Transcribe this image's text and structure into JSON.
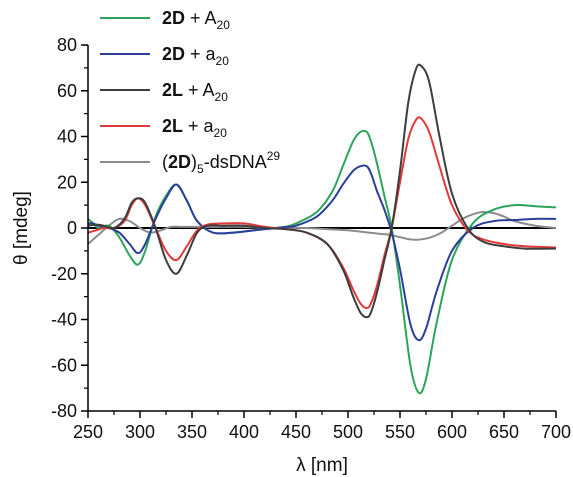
{
  "chart_data": {
    "type": "line",
    "xlabel": "λ [nm]",
    "ylabel": "θ [mdeg]",
    "xlim": [
      250,
      700
    ],
    "ylim": [
      -80,
      80
    ],
    "xticks": [
      250,
      300,
      350,
      400,
      450,
      500,
      550,
      600,
      650,
      700
    ],
    "yticks": [
      -80,
      -60,
      -40,
      -20,
      0,
      20,
      40,
      60,
      80
    ],
    "grid": false,
    "legend_position": "top-left",
    "series": [
      {
        "name": "2D + A20",
        "legend": {
          "bold": "2D",
          "text": " + A",
          "sub": "20",
          "sup": ""
        },
        "color": "#2ca55a",
        "x": [
          250,
          255,
          260,
          270,
          280,
          290,
          298,
          305,
          315,
          325,
          335,
          345,
          355,
          370,
          390,
          410,
          430,
          440,
          450,
          470,
          485,
          495,
          505,
          512,
          518,
          522,
          528,
          535,
          542,
          550,
          560,
          568,
          575,
          585,
          600,
          620,
          640,
          660,
          680,
          700
        ],
        "y": [
          4,
          2,
          0,
          1,
          -4,
          -12,
          -16,
          -10,
          5,
          14,
          19,
          12,
          3,
          -2,
          -2,
          -1,
          0,
          0.5,
          2,
          7,
          16,
          27,
          38,
          42,
          42,
          38,
          28,
          14,
          0,
          -25,
          -60,
          -72,
          -66,
          -42,
          -14,
          2,
          8,
          10,
          9.5,
          9
        ]
      },
      {
        "name": "2D + a20",
        "legend": {
          "bold": "2D",
          "text": " + a",
          "sub": "20",
          "sup": ""
        },
        "color": "#2b3f9a",
        "x": [
          250,
          255,
          260,
          270,
          280,
          290,
          298,
          305,
          315,
          325,
          335,
          345,
          355,
          370,
          390,
          410,
          430,
          440,
          450,
          470,
          485,
          495,
          505,
          512,
          518,
          522,
          528,
          535,
          542,
          550,
          560,
          568,
          575,
          585,
          600,
          620,
          640,
          660,
          680,
          700
        ],
        "y": [
          2,
          2,
          1,
          0,
          -2,
          -7,
          -11,
          -7,
          4,
          13,
          19,
          12,
          3,
          -2,
          -2,
          -1,
          0,
          0.5,
          1,
          5,
          12,
          19,
          25,
          27,
          27,
          24,
          16,
          8,
          -2,
          -18,
          -42,
          -49,
          -44,
          -28,
          -10,
          0,
          3,
          3.5,
          4,
          4
        ]
      },
      {
        "name": "2L + A20",
        "legend": {
          "bold": "2L",
          "text": " + A",
          "sub": "20",
          "sup": ""
        },
        "color": "#3d3d3d",
        "x": [
          250,
          258,
          265,
          275,
          285,
          292,
          298,
          305,
          315,
          325,
          335,
          345,
          355,
          365,
          380,
          400,
          420,
          440,
          460,
          480,
          495,
          505,
          512,
          518,
          522,
          528,
          535,
          542,
          550,
          558,
          565,
          570,
          578,
          588,
          600,
          615,
          630,
          650,
          670,
          700
        ],
        "y": [
          1,
          1.5,
          1,
          0,
          4,
          11,
          13,
          11,
          0,
          -14,
          -20,
          -12,
          -2,
          1,
          1,
          1,
          0,
          -0.5,
          -2,
          -7,
          -18,
          -30,
          -37,
          -39,
          -37,
          -28,
          -14,
          0,
          25,
          55,
          69,
          71,
          64,
          40,
          15,
          0,
          -6,
          -8,
          -9,
          -9
        ]
      },
      {
        "name": "2L + a20",
        "legend": {
          "bold": "2L",
          "text": " + a",
          "sub": "20",
          "sup": ""
        },
        "color": "#e23a3a",
        "x": [
          250,
          258,
          265,
          275,
          285,
          292,
          298,
          305,
          315,
          325,
          335,
          345,
          355,
          365,
          380,
          400,
          420,
          440,
          460,
          480,
          495,
          505,
          512,
          518,
          522,
          528,
          535,
          542,
          550,
          558,
          565,
          570,
          578,
          588,
          600,
          615,
          630,
          650,
          670,
          700
        ],
        "y": [
          -2,
          -1,
          0,
          0,
          3,
          10,
          13,
          10,
          0,
          -10,
          -14,
          -8,
          -1,
          1.5,
          2,
          2,
          0.5,
          -0.5,
          -2,
          -7,
          -17,
          -27,
          -33,
          -35,
          -33,
          -25,
          -12,
          0,
          20,
          39,
          47,
          48,
          42,
          27,
          10,
          -1,
          -5,
          -7,
          -8,
          -8.5
        ]
      },
      {
        "name": "(2D)5-dsDNA29",
        "legend": {
          "bold": "2D",
          "text": "",
          "sub": "5",
          "sup": "29",
          "prefix": "(",
          "suffix_before_sub": ")",
          "tail": "-dsDNA"
        },
        "color": "#8c8c8c",
        "x": [
          250,
          260,
          270,
          280,
          290,
          300,
          310,
          320,
          330,
          340,
          350,
          360,
          380,
          400,
          420,
          440,
          460,
          480,
          500,
          510,
          520,
          530,
          540,
          550,
          560,
          570,
          580,
          590,
          600,
          610,
          620,
          630,
          640,
          650,
          660,
          680,
          700
        ],
        "y": [
          -7,
          -3,
          1,
          4,
          3,
          0,
          -2,
          -1,
          0.5,
          0.5,
          0.5,
          0.5,
          0.5,
          0.5,
          0,
          0,
          0,
          -0.5,
          -1,
          -1.5,
          -2,
          -2.5,
          -3,
          -4,
          -5,
          -5,
          -4,
          -2,
          1,
          4,
          6,
          7,
          6.5,
          5,
          3,
          1,
          0
        ]
      }
    ]
  }
}
